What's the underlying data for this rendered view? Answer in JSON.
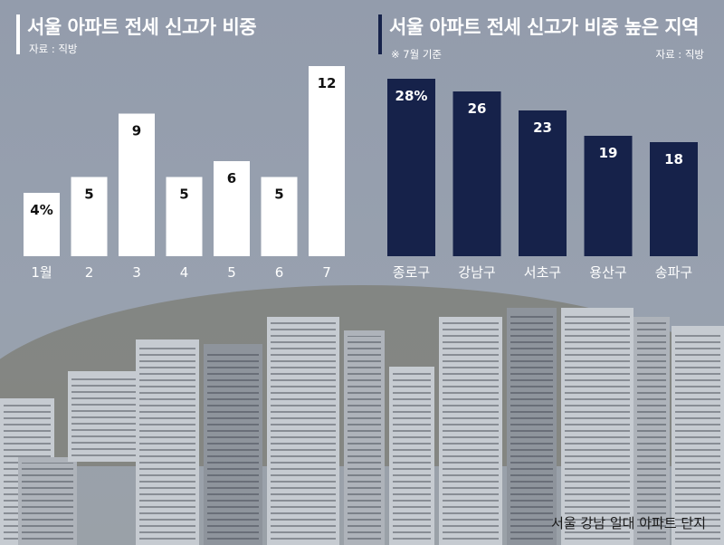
{
  "left_panel": {
    "title": "서울 아파트 전세 신고가 비중",
    "source": "자료 : 직방"
  },
  "right_panel": {
    "title": "서울 아파트 전세 신고가 비중 높은 지역",
    "note": "※ 7월 기준",
    "source": "자료 : 직방"
  },
  "caption": "서울 강남 일대 아파트 단지",
  "colors": {
    "left_bar": "#ffffff",
    "right_bar": "#16224a",
    "title_bar_left": "#ffffff",
    "title_bar_right": "#16224a"
  },
  "chart_data": [
    {
      "type": "bar",
      "title": "서울 아파트 전세 신고가 비중",
      "categories": [
        "1월",
        "2",
        "3",
        "4",
        "5",
        "6",
        "7"
      ],
      "values": [
        4,
        5,
        9,
        5,
        6,
        5,
        12
      ],
      "value_labels": [
        "4%",
        "5",
        "9",
        "5",
        "6",
        "5",
        "12"
      ],
      "unit": "%",
      "ylim": [
        0,
        12
      ]
    },
    {
      "type": "bar",
      "title": "서울 아파트 전세 신고가 비중 높은 지역",
      "categories": [
        "종로구",
        "강남구",
        "서초구",
        "용산구",
        "송파구"
      ],
      "values": [
        28,
        26,
        23,
        19,
        18
      ],
      "value_labels": [
        "28%",
        "26",
        "23",
        "19",
        "18"
      ],
      "unit": "%",
      "ylim": [
        0,
        28
      ]
    }
  ]
}
